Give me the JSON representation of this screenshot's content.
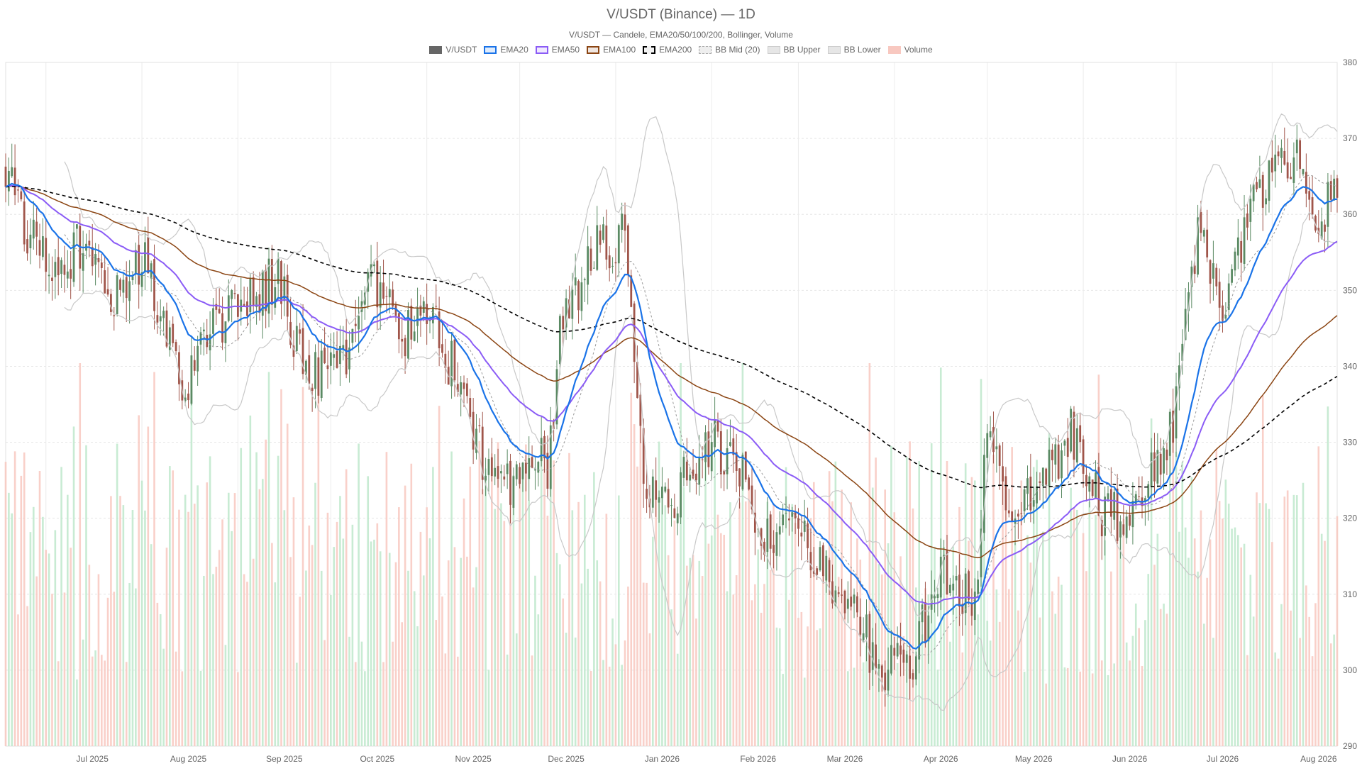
{
  "chart_data": {
    "type": "candlestick",
    "title": "V/USDT (Binance) — 1D",
    "subtitle": "V/USDT — Candele, EMA20/50/100/200, Bollinger, Volume",
    "legend": [
      {
        "label": "V/USDT",
        "color": "#666666",
        "style": "filled"
      },
      {
        "label": "EMA20",
        "color": "#1a73e8",
        "style": "outline-light"
      },
      {
        "label": "EMA50",
        "color": "#8b5cf6",
        "style": "outline-light"
      },
      {
        "label": "EMA100",
        "color": "#8b4513",
        "style": "outline-light"
      },
      {
        "label": "EMA200",
        "color": "#000000",
        "style": "dashed"
      },
      {
        "label": "BB Mid (20)",
        "color": "#aaaaaa",
        "style": "dashed-light"
      },
      {
        "label": "BB Upper",
        "color": "#cccccc",
        "style": "filled-light"
      },
      {
        "label": "BB Lower",
        "color": "#cccccc",
        "style": "filled-light"
      },
      {
        "label": "Volume",
        "color": "#f8c8c0",
        "style": "filled-pink"
      }
    ],
    "x_axis": {
      "labels": [
        "Jul 2025",
        "Aug 2025",
        "Sep 2025",
        "Oct 2025",
        "Nov 2025",
        "Dec 2025",
        "Jan 2026",
        "Feb 2026",
        "Mar 2026",
        "Apr 2026",
        "May 2026",
        "Jun 2026",
        "Jul 2026",
        "Aug 2026"
      ],
      "start": "2025-06-18",
      "end": "2026-08-22"
    },
    "y_axis": {
      "position": "right",
      "min": 290,
      "max": 380,
      "ticks": [
        290,
        300,
        310,
        320,
        330,
        340,
        350,
        360,
        370,
        380
      ]
    },
    "grid": true,
    "colors": {
      "up": "#5a8a63",
      "down": "#a0554a",
      "volume_up": "#bfe8cc",
      "volume_down": "#f8c8c0",
      "ema20": "#1a73e8",
      "ema50": "#8b5cf6",
      "ema100": "#8b4513",
      "ema200": "#000000",
      "bb_mid": "#999999",
      "bb_band": "#c8c8c8"
    },
    "price_path_keypoints": [
      [
        "2025-06-18",
        367
      ],
      [
        "2025-06-26",
        357
      ],
      [
        "2025-07-03",
        352
      ],
      [
        "2025-07-13",
        356
      ],
      [
        "2025-07-23",
        350
      ],
      [
        "2025-08-02",
        354
      ],
      [
        "2025-08-14",
        336
      ],
      [
        "2025-08-24",
        345
      ],
      [
        "2025-09-04",
        350
      ],
      [
        "2025-09-14",
        351
      ],
      [
        "2025-09-24",
        338
      ],
      [
        "2025-10-05",
        341
      ],
      [
        "2025-10-15",
        352
      ],
      [
        "2025-10-24",
        344
      ],
      [
        "2025-11-03",
        346
      ],
      [
        "2025-11-14",
        335
      ],
      [
        "2025-11-24",
        322
      ],
      [
        "2025-12-04",
        330
      ],
      [
        "2025-12-10",
        326
      ],
      [
        "2025-12-14",
        344
      ],
      [
        "2025-12-24",
        355
      ],
      [
        "2026-01-04",
        357
      ],
      [
        "2026-01-07",
        344
      ],
      [
        "2026-01-10",
        325
      ],
      [
        "2026-01-20",
        323
      ],
      [
        "2026-01-30",
        330
      ],
      [
        "2026-02-09",
        328
      ],
      [
        "2026-02-16",
        317
      ],
      [
        "2026-02-26",
        320
      ],
      [
        "2026-03-09",
        313
      ],
      [
        "2026-03-19",
        307
      ],
      [
        "2026-03-28",
        300
      ],
      [
        "2026-04-07",
        302
      ],
      [
        "2026-04-17",
        313
      ],
      [
        "2026-04-27",
        309
      ],
      [
        "2026-05-01",
        332
      ],
      [
        "2026-05-08",
        320
      ],
      [
        "2026-05-18",
        324
      ],
      [
        "2026-05-28",
        331
      ],
      [
        "2026-06-08",
        320
      ],
      [
        "2026-06-18",
        321
      ],
      [
        "2026-06-26",
        328
      ],
      [
        "2026-07-01",
        334
      ],
      [
        "2026-07-08",
        358
      ],
      [
        "2026-07-16",
        349
      ],
      [
        "2026-07-23",
        357
      ],
      [
        "2026-07-30",
        365
      ],
      [
        "2026-08-08",
        368
      ],
      [
        "2026-08-15",
        360
      ],
      [
        "2026-08-22",
        362
      ]
    ]
  }
}
